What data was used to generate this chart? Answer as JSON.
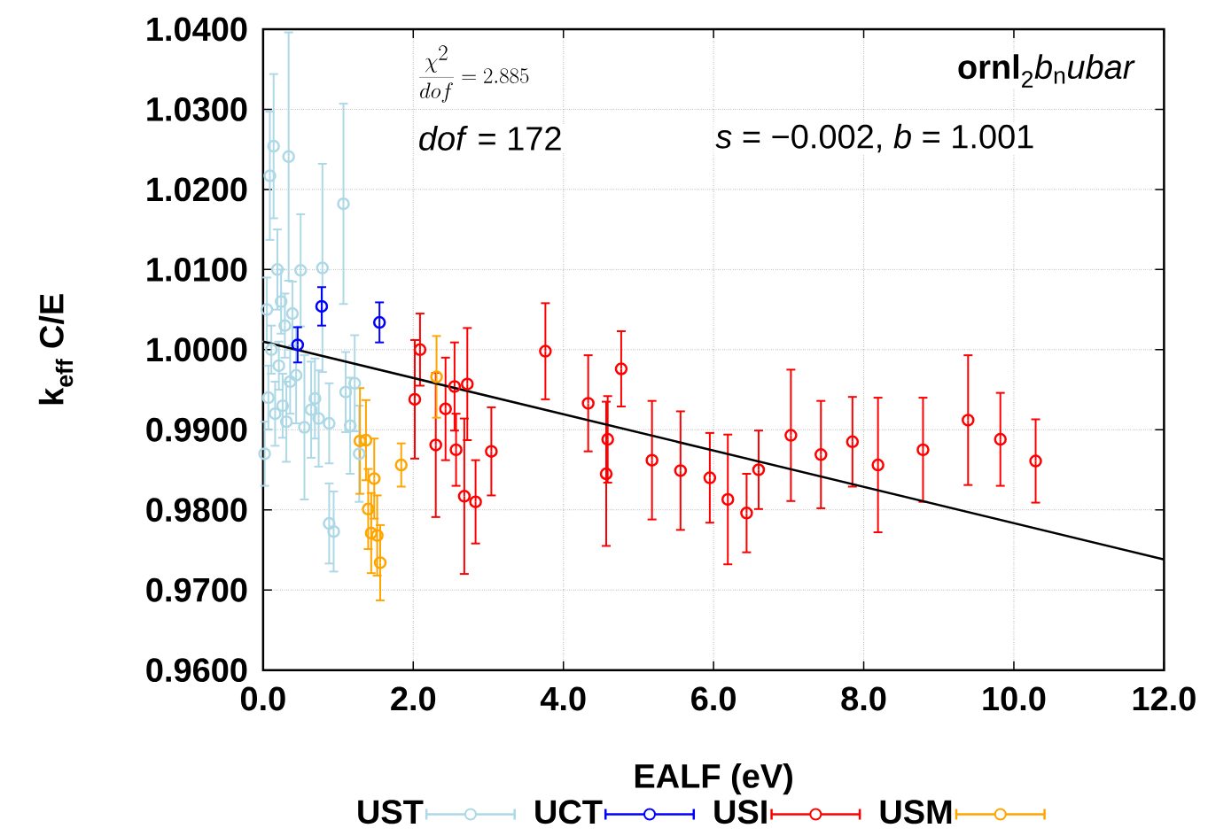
{
  "chart_data": {
    "type": "scatter",
    "xlabel": "EALF (eV)",
    "ylabel": "k$_{eff}$ C/E",
    "xlim": [
      0,
      12
    ],
    "ylim": [
      0.96,
      1.04
    ],
    "xticks": [
      {
        "value": 0,
        "label": "0.0"
      },
      {
        "value": 2,
        "label": "2.0"
      },
      {
        "value": 4,
        "label": "4.0"
      },
      {
        "value": 6,
        "label": "6.0"
      },
      {
        "value": 8,
        "label": "8.0"
      },
      {
        "value": 10,
        "label": "10.0"
      },
      {
        "value": 12,
        "label": "12.0"
      }
    ],
    "yticks": [
      {
        "value": 0.96,
        "label": "0.9600"
      },
      {
        "value": 0.97,
        "label": "0.9700"
      },
      {
        "value": 0.98,
        "label": "0.9800"
      },
      {
        "value": 0.99,
        "label": "0.9900"
      },
      {
        "value": 1.0,
        "label": "1.0000"
      },
      {
        "value": 1.01,
        "label": "1.0100"
      },
      {
        "value": 1.02,
        "label": "1.0200"
      },
      {
        "value": 1.03,
        "label": "1.0300"
      },
      {
        "value": 1.04,
        "label": "1.0400"
      }
    ],
    "grid": true,
    "legend": "bottom",
    "marker": "circle",
    "annotations": [
      "\\frac{\\chi^2}{dof} = 2.885",
      "*dof* = 172",
      "*s* = −0.002, *b* = 1.001",
      "**ornl**$_{2}$*b*$_{n}$*ubar*"
    ],
    "series": [
      {
        "name": "UST",
        "color": "#add8e6",
        "x": [
          0.14,
          0.09,
          0.34,
          0.5,
          0.79,
          1.07,
          0.44,
          0.55,
          1.1,
          1.22,
          1.16,
          1.28,
          0.88,
          0.94,
          0.69,
          0.64,
          0.88,
          0.74,
          0.02,
          0.05,
          0.07,
          0.11,
          0.16,
          0.19,
          0.21,
          0.24,
          0.26,
          0.29,
          0.31,
          0.36,
          0.39
        ],
        "values": [
          1.0254,
          1.0217,
          1.0241,
          1.0099,
          1.0102,
          1.0182,
          0.9968,
          0.9903,
          0.9947,
          0.9958,
          0.9905,
          0.987,
          0.9783,
          0.9773,
          0.9939,
          0.9925,
          0.9908,
          0.9914,
          0.987,
          1.005,
          0.994,
          1.0,
          0.992,
          1.01,
          0.998,
          1.006,
          0.993,
          1.003,
          0.991,
          0.996,
          1.0045
        ],
        "errors": [
          0.009,
          0.008,
          0.0155,
          0.007,
          0.013,
          0.0125,
          0.006,
          0.009,
          0.005,
          0.006,
          0.006,
          0.006,
          0.005,
          0.005,
          0.005,
          0.006,
          0.005,
          0.006,
          0.004,
          0.004,
          0.004,
          0.003,
          0.004,
          0.005,
          0.003,
          0.004,
          0.004,
          0.004,
          0.005,
          0.004,
          0.004
        ]
      },
      {
        "name": "UCT",
        "color": "#0000ff",
        "x": [
          0.46,
          0.78,
          1.55
        ],
        "values": [
          1.0006,
          1.0054,
          1.0034
        ],
        "errors": [
          0.0022,
          0.0024,
          0.0025
        ]
      },
      {
        "name": "USI",
        "color": "#ff0000",
        "x": [
          2.02,
          2.09,
          2.3,
          2.43,
          2.55,
          2.57,
          2.68,
          2.72,
          2.83,
          3.04,
          3.76,
          4.33,
          4.57,
          4.59,
          4.77,
          5.18,
          5.56,
          5.95,
          6.19,
          6.44,
          6.6,
          7.03,
          7.43,
          7.85,
          8.19,
          8.79,
          9.39,
          9.82,
          10.29
        ],
        "values": [
          0.9938,
          1.0,
          0.9881,
          0.9926,
          0.9954,
          0.9875,
          0.9817,
          0.9957,
          0.981,
          0.9873,
          0.9998,
          0.9933,
          0.9845,
          0.9888,
          0.9976,
          0.9862,
          0.9849,
          0.984,
          0.9813,
          0.9796,
          0.985,
          0.9893,
          0.9869,
          0.9885,
          0.9856,
          0.9875,
          0.9912,
          0.9888,
          0.9861
        ],
        "errors": [
          0.0074,
          0.0045,
          0.009,
          0.0064,
          0.0055,
          0.0045,
          0.0097,
          0.007,
          0.0052,
          0.0055,
          0.006,
          0.006,
          0.009,
          0.0054,
          0.0047,
          0.0074,
          0.0074,
          0.0056,
          0.0081,
          0.0049,
          0.0049,
          0.0082,
          0.0067,
          0.0056,
          0.0084,
          0.0065,
          0.0081,
          0.0058,
          0.0052
        ]
      },
      {
        "name": "USM",
        "color": "#ffa500",
        "x": [
          2.31,
          1.84,
          1.29,
          1.37,
          1.48,
          1.4,
          1.44,
          1.52,
          1.56
        ],
        "values": [
          0.9966,
          0.9856,
          0.9886,
          0.9887,
          0.9839,
          0.9801,
          0.9771,
          0.9768,
          0.9734
        ],
        "errors": [
          0.0051,
          0.0027,
          0.0066,
          0.005,
          0.005,
          0.005,
          0.005,
          0.005,
          0.0047
        ]
      },
      {
        "type": "line",
        "color": "#000000",
        "marker": "none",
        "x": [
          0,
          12
        ],
        "values": [
          1.001,
          0.9738
        ]
      }
    ]
  }
}
